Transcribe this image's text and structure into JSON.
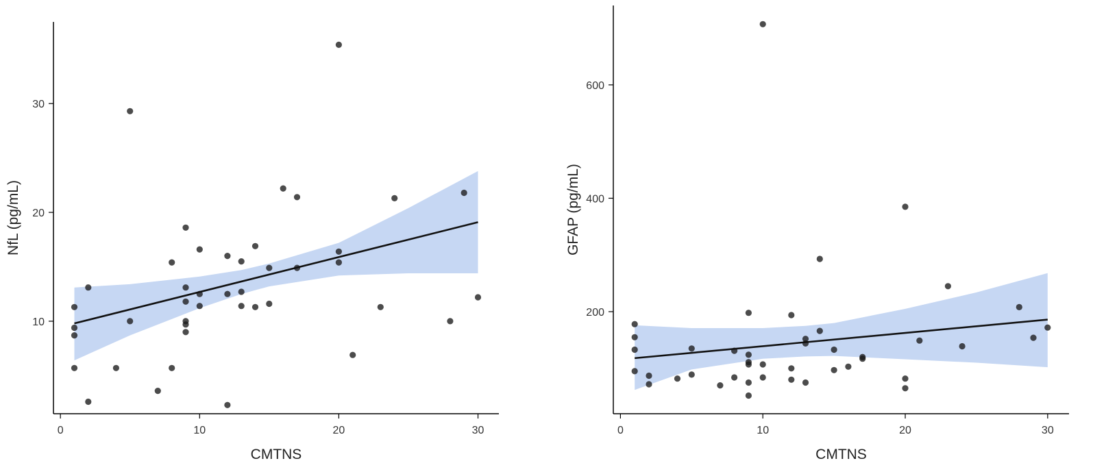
{
  "colors": {
    "point": "#1a1a1a",
    "fit_line": "#111111",
    "ci_band": "#c6d7f3",
    "axis": "#000000"
  },
  "chart_data": [
    {
      "type": "scatter",
      "title": "",
      "xlabel": "CMTNS",
      "ylabel": "NfL (pg/mL)",
      "xlim": [
        -0.5,
        31.5
      ],
      "ylim": [
        1.5,
        37.5
      ],
      "xticks": [
        0,
        10,
        20,
        30
      ],
      "yticks": [
        10,
        20,
        30
      ],
      "grid": false,
      "legend": "none",
      "points": [
        [
          1,
          11.3
        ],
        [
          1,
          9.4
        ],
        [
          1,
          8.7
        ],
        [
          1,
          5.7
        ],
        [
          2,
          13.1
        ],
        [
          2,
          2.6
        ],
        [
          4,
          5.7
        ],
        [
          5,
          29.3
        ],
        [
          5,
          10.0
        ],
        [
          7,
          3.6
        ],
        [
          8,
          15.4
        ],
        [
          8,
          5.7
        ],
        [
          9,
          18.6
        ],
        [
          9,
          13.1
        ],
        [
          9,
          11.8
        ],
        [
          9,
          10.0
        ],
        [
          9,
          9.7
        ],
        [
          9,
          9.0
        ],
        [
          10,
          16.6
        ],
        [
          10,
          12.5
        ],
        [
          10,
          11.4
        ],
        [
          12,
          16.0
        ],
        [
          12,
          12.5
        ],
        [
          12,
          2.3
        ],
        [
          13,
          15.5
        ],
        [
          13,
          12.7
        ],
        [
          13,
          11.4
        ],
        [
          14,
          16.9
        ],
        [
          14,
          11.3
        ],
        [
          15,
          14.9
        ],
        [
          15,
          11.6
        ],
        [
          16,
          22.2
        ],
        [
          17,
          21.4
        ],
        [
          17,
          14.9
        ],
        [
          20,
          35.4
        ],
        [
          20,
          16.4
        ],
        [
          20,
          15.4
        ],
        [
          21,
          6.9
        ],
        [
          23,
          11.3
        ],
        [
          24,
          21.3
        ],
        [
          28,
          10.0
        ],
        [
          29,
          21.8
        ],
        [
          30,
          12.2
        ]
      ],
      "fit": {
        "x": [
          1,
          30
        ],
        "y": [
          9.8,
          19.1
        ]
      },
      "ci_band": {
        "x": [
          1,
          5,
          10,
          13,
          15,
          20,
          25,
          30
        ],
        "lower": [
          6.4,
          8.7,
          11.2,
          12.5,
          13.2,
          14.2,
          14.4,
          14.4
        ],
        "upper": [
          13.1,
          13.4,
          14.1,
          14.7,
          15.3,
          17.2,
          20.4,
          23.8
        ]
      }
    },
    {
      "type": "scatter",
      "title": "",
      "xlabel": "CMTNS",
      "ylabel": "GFAP (pg/mL)",
      "xlim": [
        -0.5,
        31.5
      ],
      "ylim": [
        20,
        740
      ],
      "xticks": [
        0,
        10,
        20,
        30
      ],
      "yticks": [
        200,
        400,
        600
      ],
      "grid": false,
      "legend": "none",
      "points": [
        [
          1,
          178
        ],
        [
          1,
          155
        ],
        [
          1,
          133
        ],
        [
          1,
          95
        ],
        [
          2,
          87
        ],
        [
          2,
          72
        ],
        [
          4,
          82
        ],
        [
          5,
          135
        ],
        [
          5,
          89
        ],
        [
          7,
          70
        ],
        [
          8,
          131
        ],
        [
          8,
          84
        ],
        [
          9,
          198
        ],
        [
          9,
          124
        ],
        [
          9,
          111
        ],
        [
          9,
          107
        ],
        [
          9,
          75
        ],
        [
          9,
          52
        ],
        [
          10,
          707
        ],
        [
          10,
          107
        ],
        [
          10,
          84
        ],
        [
          12,
          194
        ],
        [
          12,
          100
        ],
        [
          12,
          80
        ],
        [
          13,
          152
        ],
        [
          13,
          144
        ],
        [
          13,
          75
        ],
        [
          14,
          293
        ],
        [
          14,
          166
        ],
        [
          15,
          133
        ],
        [
          15,
          97
        ],
        [
          16,
          103
        ],
        [
          17,
          120
        ],
        [
          17,
          117
        ],
        [
          20,
          385
        ],
        [
          20,
          82
        ],
        [
          20,
          65
        ],
        [
          21,
          149
        ],
        [
          23,
          245
        ],
        [
          24,
          139
        ],
        [
          28,
          208
        ],
        [
          29,
          154
        ],
        [
          30,
          172
        ]
      ],
      "fit": {
        "x": [
          1,
          30
        ],
        "y": [
          118,
          186
        ]
      },
      "ci_band": {
        "x": [
          1,
          5,
          10,
          13,
          15,
          20,
          25,
          30
        ],
        "lower": [
          62,
          98,
          117,
          121,
          122,
          116,
          110,
          102
        ],
        "upper": [
          176,
          171,
          171,
          175,
          180,
          205,
          234,
          268
        ]
      }
    }
  ]
}
